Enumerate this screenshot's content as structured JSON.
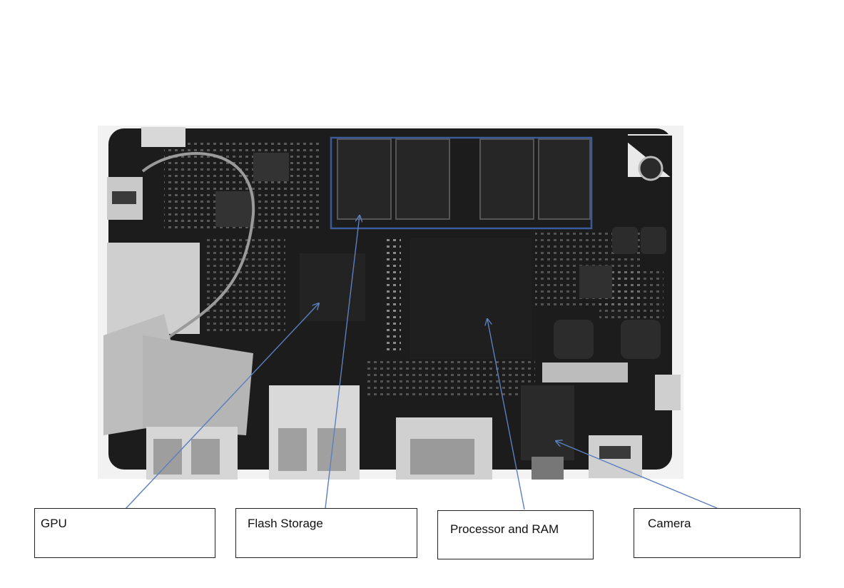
{
  "figure": {
    "photo_subject": "single-board-computer-pcb",
    "highlight_color": "#3a5a99",
    "arrow_color": "#5b7fbf"
  },
  "labels": {
    "gpu": "GPU",
    "flash": "Flash Storage",
    "processor": "Processor and RAM",
    "camera": "Camera"
  }
}
